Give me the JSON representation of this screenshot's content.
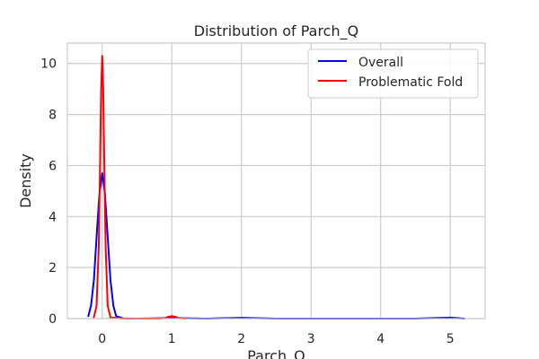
{
  "chart_data": {
    "type": "line",
    "title": "Distribution of Parch_Q",
    "xlabel": "Parch_Q",
    "ylabel": "Density",
    "xlim": [
      -0.5,
      5.5
    ],
    "ylim": [
      0,
      10.8
    ],
    "x_ticks": [
      0,
      1,
      2,
      3,
      4,
      5
    ],
    "y_ticks": [
      0,
      2,
      4,
      6,
      8,
      10
    ],
    "grid": true,
    "legend_position": "top-right",
    "series": [
      {
        "name": "Overall",
        "color": "#0000ff",
        "x": [
          -0.2,
          -0.16,
          -0.12,
          -0.08,
          -0.04,
          0.0,
          0.04,
          0.08,
          0.12,
          0.16,
          0.2,
          0.3,
          0.5,
          1.0,
          1.5,
          2.0,
          2.5,
          3.0,
          3.5,
          4.0,
          4.5,
          5.0,
          5.2
        ],
        "y": [
          0.1,
          0.5,
          1.5,
          3.2,
          4.9,
          5.7,
          4.9,
          3.2,
          1.5,
          0.5,
          0.1,
          0.01,
          0.0,
          0.02,
          0.0,
          0.03,
          0.0,
          0.0,
          0.0,
          0.0,
          0.0,
          0.04,
          0.0
        ]
      },
      {
        "name": "Problematic Fold",
        "color": "#ff0000",
        "x": [
          -0.12,
          -0.08,
          -0.05,
          -0.03,
          -0.015,
          0.0,
          0.015,
          0.03,
          0.05,
          0.08,
          0.12,
          0.3,
          0.8,
          0.9,
          0.95,
          1.0,
          1.05,
          1.1,
          1.2
        ],
        "y": [
          0.05,
          0.5,
          2.8,
          6.0,
          9.0,
          10.3,
          9.0,
          6.0,
          2.8,
          0.5,
          0.05,
          0.0,
          0.0,
          0.02,
          0.07,
          0.1,
          0.07,
          0.02,
          0.0
        ]
      }
    ]
  }
}
